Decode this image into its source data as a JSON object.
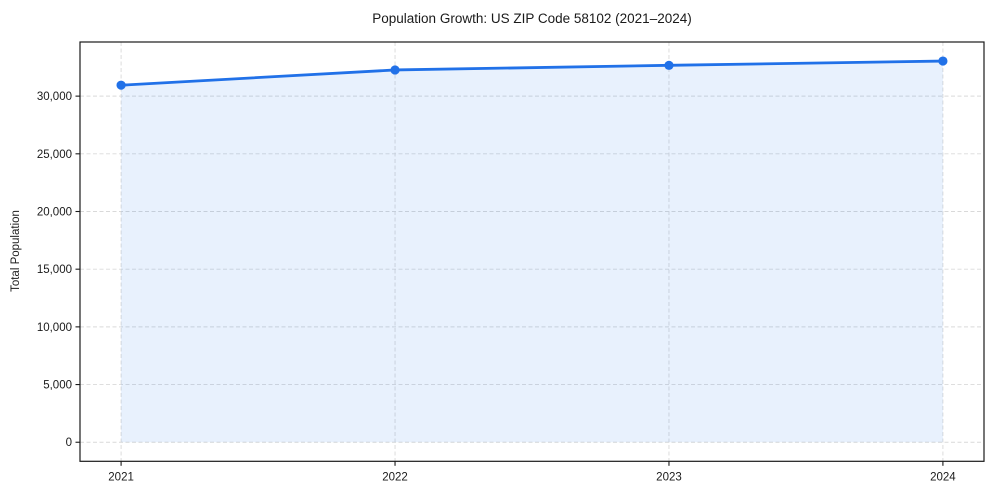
{
  "chart_data": {
    "type": "area",
    "title": "Population Growth: US ZIP Code 58102 (2021–2024)",
    "xlabel": "",
    "ylabel": "Total Population",
    "x": [
      2021,
      2022,
      2023,
      2024
    ],
    "series": [
      {
        "name": "Total Population",
        "values": [
          30950,
          32270,
          32670,
          33040
        ]
      }
    ],
    "fill_baseline": 0,
    "xlim": [
      2020.85,
      2024.15
    ],
    "ylim": [
      -1652,
      34692
    ],
    "xticks": [
      2021,
      2022,
      2023,
      2024
    ],
    "xtick_labels": [
      "2021",
      "2022",
      "2023",
      "2024"
    ],
    "yticks": [
      0,
      5000,
      10000,
      15000,
      20000,
      25000,
      30000
    ],
    "ytick_labels": [
      "0",
      "5,000",
      "10,000",
      "15,000",
      "20,000",
      "25,000",
      "30,000"
    ],
    "grid": true,
    "grid_style": "dashed",
    "legend": false,
    "colors": {
      "line": "#2171e8",
      "marker": "#2171e8",
      "fill": "#2171e8",
      "fill_opacity": 0.1,
      "grid": "#d9d9d9",
      "axis": "#1a1a1a",
      "text": "#1a1a1a"
    }
  }
}
